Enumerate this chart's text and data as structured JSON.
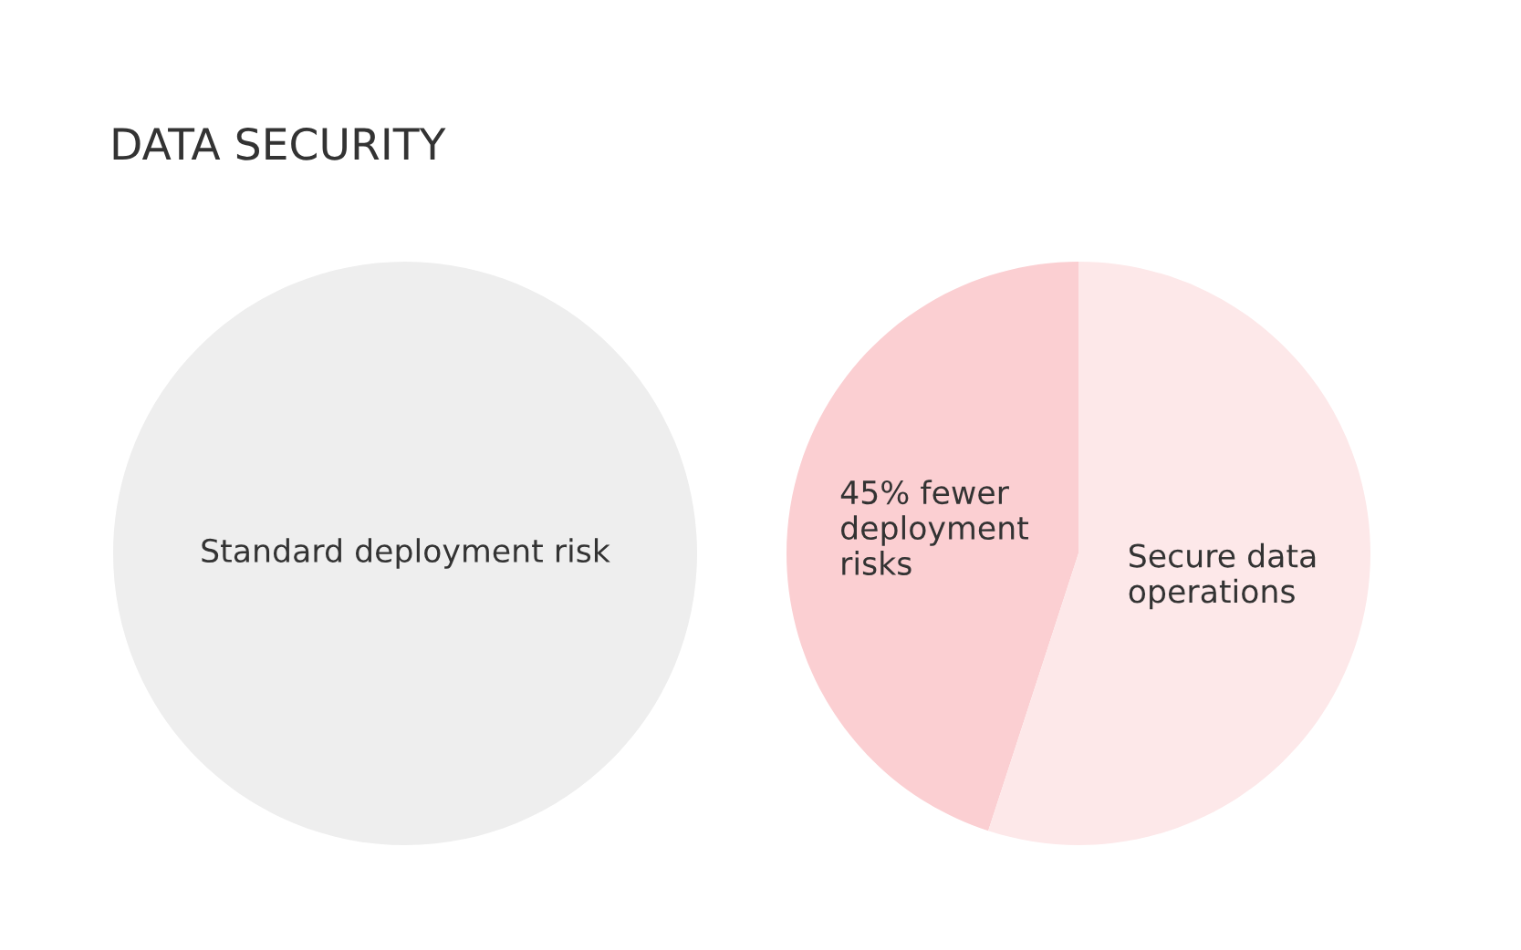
{
  "chart_data": [
    {
      "type": "pie",
      "title": "DATA SECURITY",
      "categories": [
        "Standard deployment risk"
      ],
      "values": [
        100
      ],
      "colors": [
        "#eeeeee"
      ]
    },
    {
      "type": "pie",
      "categories": [
        "45% fewer deployment risks",
        "Secure data operations"
      ],
      "values": [
        45,
        55
      ],
      "colors": [
        "#fbcfd2",
        "#fde8e9"
      ]
    }
  ]
}
